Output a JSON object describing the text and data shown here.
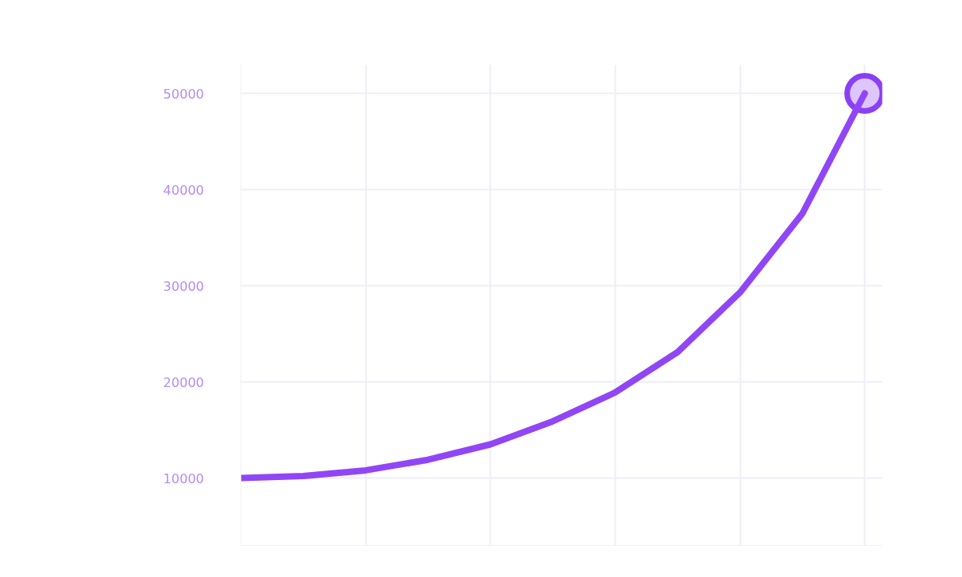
{
  "chart_data": {
    "type": "line",
    "categories": [
      null,
      null,
      null,
      null,
      null,
      null,
      null,
      null,
      null,
      null,
      null
    ],
    "series": [
      {
        "color": "#9146f6",
        "values": [
          10000,
          10200,
          10800,
          11900,
          13500,
          15900,
          18900,
          23100,
          29300,
          37500,
          50000
        ],
        "marker": "none",
        "line_style": "solid"
      },
      {
        "type": "scatter",
        "color": "#8b3ff5",
        "values": [
          null,
          null,
          null,
          null,
          null,
          null,
          null,
          null,
          null,
          null,
          50000
        ],
        "marker": "circle"
      }
    ],
    "ylim": [
      3000,
      53000
    ],
    "yticks": [
      10000,
      20000,
      30000,
      40000,
      50000
    ],
    "grid": true,
    "tick_labels": "y"
  }
}
